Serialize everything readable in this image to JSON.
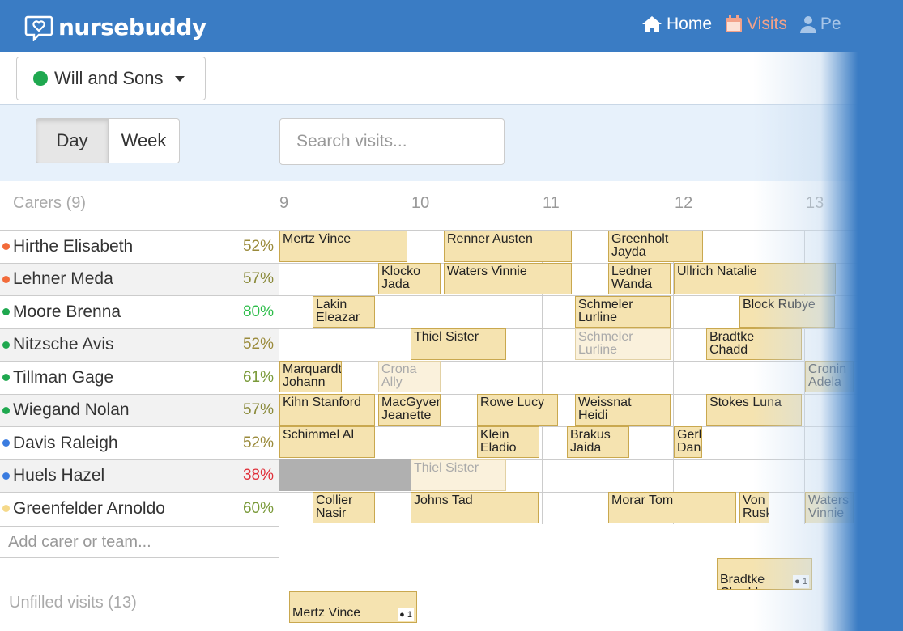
{
  "app": {
    "logo_text": "nursebuddy"
  },
  "nav": {
    "home": "Home",
    "visits": "Visits",
    "profile": "Pe"
  },
  "org": {
    "name": "Will and Sons",
    "color": "#1fa84f"
  },
  "view": {
    "day": "Day",
    "week": "Week"
  },
  "search": {
    "placeholder": "Search visits..."
  },
  "grid": {
    "carers_heading": "Carers (9)",
    "hours": [
      "9",
      "10",
      "11",
      "12",
      "13"
    ],
    "add_carer_placeholder": "Add carer or team...",
    "unfilled_heading": "Unfilled visits (13)"
  },
  "carers": [
    {
      "name": "Hirthe Elisabeth",
      "pct": "52%",
      "dot": "#f26b3a",
      "pct_color": "#9a8a3a"
    },
    {
      "name": "Lehner Meda",
      "pct": "57%",
      "dot": "#f26b3a",
      "pct_color": "#8a8a3a"
    },
    {
      "name": "Moore Brenna",
      "pct": "80%",
      "dot": "#1fa84f",
      "pct_color": "#2dbd4a"
    },
    {
      "name": "Nitzsche Avis",
      "pct": "52%",
      "dot": "#1fa84f",
      "pct_color": "#9a8a3a"
    },
    {
      "name": "Tillman Gage",
      "pct": "61%",
      "dot": "#1fa84f",
      "pct_color": "#7a9a3a"
    },
    {
      "name": "Wiegand Nolan",
      "pct": "57%",
      "dot": "#1fa84f",
      "pct_color": "#8a8a3a"
    },
    {
      "name": "Davis Raleigh",
      "pct": "52%",
      "dot": "#3a7ce0",
      "pct_color": "#9a8a3a"
    },
    {
      "name": "Huels Hazel",
      "pct": "38%",
      "dot": "#3a7ce0",
      "pct_color": "#e0303a"
    },
    {
      "name": "Greenfelder Arnoldo",
      "pct": "60%",
      "dot": "#f5d98a",
      "pct_color": "#7a9a3a"
    }
  ],
  "visits": {
    "r0": [
      "Mertz Vince",
      "Renner Austen",
      "Greenholt\nJayda"
    ],
    "r1": [
      "Klocko\nJada",
      "Waters Vinnie",
      "Ledner\nWanda",
      "Ullrich Natalie"
    ],
    "r2": [
      "Lakin\nEleazar",
      "Schmeler\nLurline",
      "Block Rubye"
    ],
    "r3": [
      "Thiel Sister",
      "Schmeler\nLurline",
      "Bradtke\nChadd"
    ],
    "r4": [
      "Marquardt\nJohann",
      "Crona\nAlly",
      "Cronin\nAdela"
    ],
    "r5": [
      "Kihn Stanford",
      "MacGyver\nJeanette",
      "Rowe Lucy",
      "Weissnat\nHeidi",
      "Stokes Luna"
    ],
    "r6": [
      "Schimmel Al",
      "Klein\nEladio",
      "Brakus\nJaida",
      "Gerhold\nDante"
    ],
    "r7": [
      "Thiel Sister"
    ],
    "r8": [
      "Collier\nNasir",
      "Johns Tad",
      "Morar Tom",
      "Von\nRusk",
      "Waters\nVinnie"
    ],
    "unfilled": [
      "Bradtke\nChadd",
      "Mertz Vince"
    ],
    "unfilled_count": "1"
  }
}
